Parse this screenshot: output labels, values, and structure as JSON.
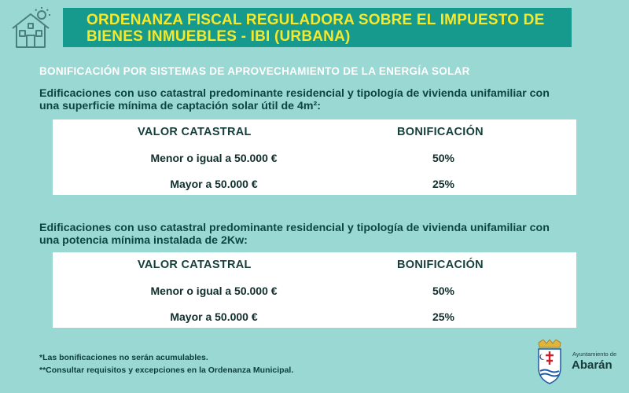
{
  "header": {
    "title_line1": "ORDENANZA FISCAL REGULADORA SOBRE EL IMPUESTO DE",
    "title_line2": "BIENES INMUEBLES - IBI (URBANA)",
    "icon": "house-icon",
    "colors": {
      "banner": "#169a8e",
      "title": "#f7e82a",
      "background": "#9ad8d3"
    }
  },
  "section_title": "BONIFICACIÓN POR SISTEMAS DE APROVECHAMIENTO DE LA ENERGÍA SOLAR",
  "blocks": [
    {
      "criteria_line1": "Edificaciones con uso catastral predominante residencial y tipología de vivienda unifamiliar con",
      "criteria_line2": "una superficie mínima de captación solar útil de 4m²:",
      "header_valor": "VALOR CATASTRAL",
      "header_bonif": "BONIFICACIÓN",
      "rows": [
        {
          "valor": "Menor o igual a 50.000 €",
          "bonif": "50%"
        },
        {
          "valor": "Mayor a 50.000 €",
          "bonif": "25%"
        }
      ]
    },
    {
      "criteria_line1": "Edificaciones con uso catastral predominante residencial y tipología de vivienda unifamiliar con",
      "criteria_line2": "una potencia mínima instalada de 2Kw:",
      "header_valor": "VALOR CATASTRAL",
      "header_bonif": "BONIFICACIÓN",
      "rows": [
        {
          "valor": "Menor o igual a 50.000 €",
          "bonif": "50%"
        },
        {
          "valor": "Mayor a 50.000 €",
          "bonif": "25%"
        }
      ]
    }
  ],
  "notes": {
    "line1": "*Las bonificaciones no serán acumulables.",
    "line2": "**Consultar requisitos y excepciones en la Ordenanza Municipal."
  },
  "logo": {
    "small": "Ayuntamiento de",
    "big": "Abarán",
    "icon": "coat-of-arms-icon"
  }
}
